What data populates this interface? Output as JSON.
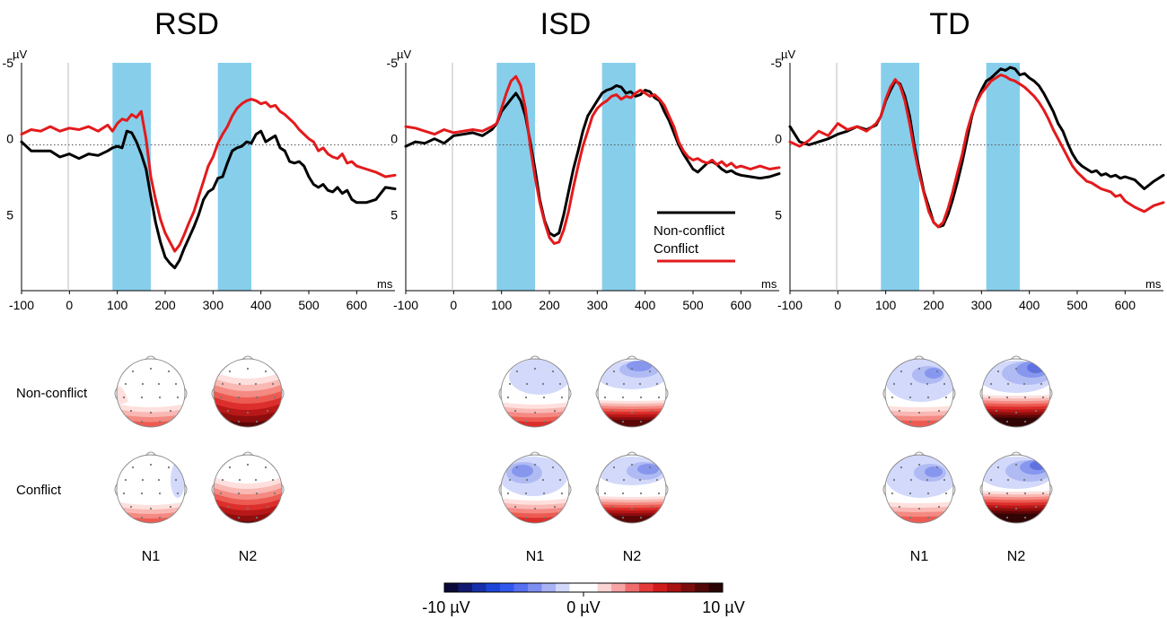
{
  "chart_data": [
    {
      "type": "line",
      "title": "RSD",
      "xlabel": "ms",
      "ylabel": "µV",
      "xlim": [
        -100,
        680
      ],
      "ylim": [
        -5,
        10
      ],
      "y_inverted": true,
      "x_ticks": [
        "-100",
        "0",
        "100",
        "200",
        "300",
        "400",
        "500",
        "600"
      ],
      "y_ticks": [
        "-5",
        "0",
        "5"
      ],
      "shaded_windows": [
        [
          90,
          170
        ],
        [
          310,
          380
        ]
      ],
      "series": [
        {
          "name": "Non-conflict",
          "color": "#000000",
          "x": [
            -100,
            -80,
            -60,
            -40,
            -20,
            0,
            20,
            40,
            60,
            80,
            90,
            100,
            110,
            120,
            130,
            140,
            150,
            160,
            170,
            180,
            190,
            200,
            210,
            220,
            230,
            240,
            250,
            260,
            270,
            280,
            290,
            300,
            310,
            320,
            330,
            340,
            350,
            360,
            370,
            380,
            390,
            400,
            410,
            420,
            430,
            440,
            450,
            460,
            470,
            480,
            490,
            500,
            510,
            520,
            530,
            540,
            550,
            560,
            570,
            580,
            590,
            600,
            620,
            640,
            660,
            680
          ],
          "y": [
            0.2,
            0.8,
            0.8,
            0.8,
            1.2,
            1.0,
            1.3,
            1.0,
            1.1,
            0.8,
            0.6,
            0.5,
            0.6,
            -0.5,
            -0.4,
            0.2,
            1.0,
            2.0,
            3.8,
            5.5,
            6.8,
            7.8,
            8.2,
            8.5,
            8.0,
            7.2,
            6.5,
            5.8,
            5.0,
            4.0,
            3.5,
            3.3,
            2.6,
            2.5,
            1.6,
            0.8,
            0.6,
            0.5,
            0.2,
            0.3,
            -0.3,
            -0.5,
            0.2,
            0.0,
            -0.2,
            0.6,
            0.8,
            1.5,
            1.6,
            1.5,
            1.8,
            2.5,
            3.0,
            3.2,
            3.0,
            3.4,
            3.5,
            3.2,
            3.6,
            3.4,
            4.0,
            4.2,
            4.2,
            4.0,
            3.2,
            3.3
          ]
        },
        {
          "name": "Conflict",
          "color": "#e31a1c",
          "x": [
            -100,
            -80,
            -60,
            -40,
            -20,
            0,
            20,
            40,
            60,
            80,
            90,
            100,
            110,
            120,
            130,
            140,
            150,
            160,
            170,
            180,
            190,
            200,
            210,
            220,
            230,
            240,
            250,
            260,
            270,
            280,
            290,
            300,
            310,
            320,
            330,
            340,
            350,
            360,
            370,
            380,
            390,
            400,
            410,
            420,
            430,
            440,
            450,
            460,
            470,
            480,
            490,
            500,
            510,
            520,
            530,
            540,
            550,
            560,
            570,
            580,
            590,
            600,
            620,
            640,
            660,
            680
          ],
          "y": [
            -0.3,
            -0.6,
            -0.5,
            -0.8,
            -0.5,
            -0.7,
            -0.6,
            -0.8,
            -0.5,
            -0.9,
            -0.5,
            -1.0,
            -1.3,
            -1.2,
            -1.6,
            -1.4,
            -1.8,
            0.0,
            2.5,
            4.0,
            5.3,
            6.2,
            6.8,
            7.4,
            7.0,
            6.3,
            5.5,
            4.8,
            3.8,
            2.8,
            1.8,
            1.2,
            0.3,
            -0.3,
            -0.8,
            -1.5,
            -2.0,
            -2.3,
            -2.5,
            -2.6,
            -2.5,
            -2.3,
            -2.4,
            -2.1,
            -2.2,
            -1.8,
            -1.6,
            -1.3,
            -1.0,
            -0.6,
            -0.3,
            0.0,
            0.2,
            0.8,
            0.6,
            1.0,
            1.2,
            1.3,
            1.0,
            1.6,
            1.5,
            1.8,
            2.0,
            2.2,
            2.5,
            2.4
          ]
        }
      ]
    },
    {
      "type": "line",
      "title": "ISD",
      "xlabel": "ms",
      "ylabel": "µV",
      "xlim": [
        -100,
        680
      ],
      "ylim": [
        -5,
        10
      ],
      "y_inverted": true,
      "x_ticks": [
        "-100",
        "0",
        "100",
        "200",
        "300",
        "400",
        "500",
        "600"
      ],
      "y_ticks": [
        "-5",
        "0",
        "5"
      ],
      "shaded_windows": [
        [
          90,
          170
        ],
        [
          310,
          380
        ]
      ],
      "series": [
        {
          "name": "Non-conflict",
          "color": "#000000",
          "x": [
            -100,
            -80,
            -60,
            -40,
            -20,
            0,
            20,
            40,
            60,
            80,
            90,
            100,
            110,
            120,
            130,
            140,
            150,
            160,
            170,
            180,
            190,
            200,
            210,
            220,
            230,
            240,
            250,
            260,
            270,
            280,
            290,
            300,
            310,
            320,
            330,
            340,
            350,
            360,
            370,
            380,
            390,
            400,
            410,
            420,
            430,
            440,
            450,
            460,
            470,
            480,
            490,
            500,
            510,
            520,
            530,
            540,
            550,
            560,
            570,
            580,
            590,
            600,
            620,
            640,
            660,
            680
          ],
          "y": [
            0.5,
            0.2,
            0.3,
            0.0,
            0.3,
            -0.2,
            -0.3,
            -0.4,
            -0.2,
            -0.6,
            -1.0,
            -1.8,
            -2.2,
            -2.6,
            -3.0,
            -2.5,
            -1.5,
            0.2,
            2.0,
            4.0,
            5.4,
            6.2,
            6.4,
            6.2,
            5.0,
            3.5,
            2.0,
            0.8,
            -0.5,
            -1.5,
            -2.0,
            -2.5,
            -3.0,
            -3.2,
            -3.3,
            -3.5,
            -3.4,
            -3.0,
            -3.1,
            -2.8,
            -2.9,
            -3.2,
            -3.1,
            -2.7,
            -2.5,
            -1.8,
            -1.2,
            -0.4,
            0.4,
            1.0,
            1.5,
            2.0,
            2.2,
            1.9,
            1.6,
            1.5,
            1.7,
            2.0,
            2.2,
            2.1,
            2.3,
            2.4,
            2.5,
            2.6,
            2.5,
            2.3
          ]
        },
        {
          "name": "Conflict",
          "color": "#e31a1c",
          "x": [
            -100,
            -80,
            -60,
            -40,
            -20,
            0,
            20,
            40,
            60,
            80,
            90,
            100,
            110,
            120,
            130,
            140,
            150,
            160,
            170,
            180,
            190,
            200,
            210,
            220,
            230,
            240,
            250,
            260,
            270,
            280,
            290,
            300,
            310,
            320,
            330,
            340,
            350,
            360,
            370,
            380,
            390,
            400,
            410,
            420,
            430,
            440,
            450,
            460,
            470,
            480,
            490,
            500,
            510,
            520,
            530,
            540,
            550,
            560,
            570,
            580,
            590,
            600,
            620,
            640,
            660,
            680
          ],
          "y": [
            -0.8,
            -0.7,
            -0.5,
            -0.3,
            -0.6,
            -0.4,
            -0.5,
            -0.6,
            -0.5,
            -0.8,
            -1.0,
            -2.0,
            -3.0,
            -3.8,
            -4.1,
            -3.5,
            -2.0,
            0.5,
            2.5,
            4.2,
            5.5,
            6.5,
            6.9,
            6.8,
            6.0,
            4.8,
            3.2,
            1.8,
            0.5,
            -0.5,
            -1.5,
            -2.0,
            -2.3,
            -2.5,
            -2.8,
            -2.9,
            -2.6,
            -2.8,
            -2.7,
            -3.0,
            -3.2,
            -3.0,
            -2.8,
            -2.9,
            -2.6,
            -2.2,
            -1.5,
            -0.8,
            0.2,
            0.8,
            1.2,
            1.4,
            1.3,
            1.5,
            1.6,
            1.4,
            1.7,
            1.5,
            1.8,
            1.6,
            1.9,
            1.8,
            2.0,
            1.8,
            2.0,
            1.9
          ]
        }
      ]
    },
    {
      "type": "line",
      "title": "TD",
      "xlabel": "ms",
      "ylabel": "µV",
      "xlim": [
        -100,
        680
      ],
      "ylim": [
        -5,
        10
      ],
      "y_inverted": true,
      "x_ticks": [
        "-100",
        "0",
        "100",
        "200",
        "300",
        "400",
        "500",
        "600"
      ],
      "y_ticks": [
        "-5",
        "0",
        "5"
      ],
      "shaded_windows": [
        [
          90,
          170
        ],
        [
          310,
          380
        ]
      ],
      "series": [
        {
          "name": "Non-conflict",
          "color": "#000000",
          "x": [
            -100,
            -80,
            -60,
            -40,
            -20,
            0,
            20,
            40,
            60,
            80,
            90,
            100,
            110,
            120,
            130,
            140,
            150,
            160,
            170,
            180,
            190,
            200,
            210,
            220,
            230,
            240,
            250,
            260,
            270,
            280,
            290,
            300,
            310,
            320,
            330,
            340,
            350,
            360,
            370,
            380,
            390,
            400,
            410,
            420,
            430,
            440,
            450,
            460,
            470,
            480,
            490,
            500,
            510,
            520,
            530,
            540,
            550,
            560,
            570,
            580,
            590,
            600,
            620,
            640,
            660,
            680
          ],
          "y": [
            -0.8,
            0.2,
            0.4,
            0.2,
            0.0,
            -0.3,
            -0.5,
            -0.8,
            -0.6,
            -0.9,
            -1.5,
            -2.5,
            -3.2,
            -3.8,
            -3.6,
            -2.8,
            -1.5,
            0.5,
            2.0,
            3.5,
            4.5,
            5.5,
            5.8,
            5.7,
            5.0,
            4.0,
            2.8,
            1.5,
            0.0,
            -1.5,
            -2.5,
            -3.2,
            -3.8,
            -4.0,
            -4.3,
            -4.6,
            -4.5,
            -4.7,
            -4.6,
            -4.2,
            -4.3,
            -4.0,
            -3.8,
            -3.5,
            -3.0,
            -2.4,
            -1.8,
            -1.0,
            -0.5,
            0.3,
            1.0,
            1.5,
            1.8,
            2.0,
            2.2,
            2.1,
            2.4,
            2.3,
            2.5,
            2.4,
            2.6,
            2.5,
            2.7,
            3.3,
            2.8,
            2.4
          ]
        },
        {
          "name": "Conflict",
          "color": "#e31a1c",
          "x": [
            -100,
            -80,
            -60,
            -40,
            -20,
            0,
            20,
            40,
            60,
            80,
            90,
            100,
            110,
            120,
            130,
            140,
            150,
            160,
            170,
            180,
            190,
            200,
            210,
            220,
            230,
            240,
            250,
            260,
            270,
            280,
            290,
            300,
            310,
            320,
            330,
            340,
            350,
            360,
            370,
            380,
            390,
            400,
            410,
            420,
            430,
            440,
            450,
            460,
            470,
            480,
            490,
            500,
            510,
            520,
            530,
            540,
            550,
            560,
            570,
            580,
            590,
            600,
            620,
            640,
            660,
            680
          ],
          "y": [
            0.2,
            0.5,
            0.1,
            -0.5,
            -0.2,
            -1.0,
            -0.6,
            -0.8,
            -0.5,
            -1.0,
            -1.5,
            -2.6,
            -3.4,
            -3.9,
            -3.5,
            -2.5,
            -1.0,
            0.8,
            2.3,
            3.6,
            4.8,
            5.5,
            5.8,
            5.5,
            4.6,
            3.5,
            2.2,
            1.0,
            -0.5,
            -1.6,
            -2.4,
            -3.0,
            -3.4,
            -3.8,
            -4.0,
            -4.2,
            -4.1,
            -3.9,
            -3.8,
            -3.6,
            -3.4,
            -3.1,
            -2.8,
            -2.4,
            -1.9,
            -1.3,
            -0.6,
            0.0,
            0.6,
            1.2,
            1.8,
            2.2,
            2.5,
            2.8,
            2.9,
            3.1,
            3.3,
            3.4,
            3.5,
            3.8,
            3.7,
            4.1,
            4.5,
            4.8,
            4.4,
            4.2
          ]
        }
      ]
    }
  ],
  "legend": {
    "items": [
      {
        "label": "Non-conflict",
        "color": "#000000"
      },
      {
        "label": "Conflict",
        "color": "#e31a1c"
      }
    ],
    "placement": "inside ISD panel, bottom-right"
  },
  "topography": {
    "rows": [
      "Non-conflict",
      "Conflict"
    ],
    "components": [
      "N1",
      "N2"
    ],
    "groups": [
      "RSD",
      "ISD",
      "TD"
    ],
    "colorbar": {
      "min_label": "-10 µV",
      "mid_label": "0 µV",
      "max_label": "10 µV",
      "min": -10,
      "max": 10
    }
  }
}
